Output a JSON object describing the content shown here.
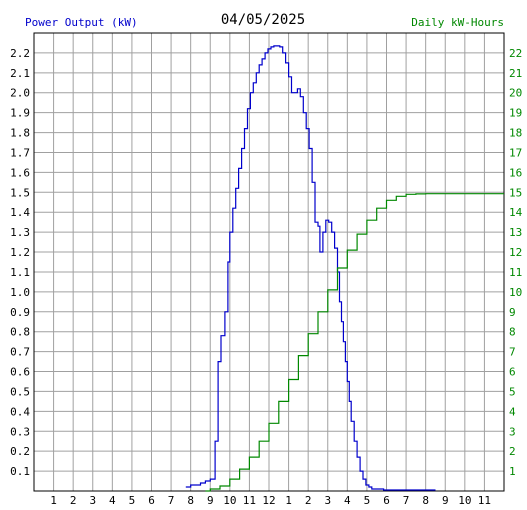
{
  "chart_data": {
    "type": "line",
    "title": "04/05/2025",
    "left_axis_label": "Power Output (kW)",
    "right_axis_label": "Daily kW-Hours",
    "colors": {
      "power": "#0000cc",
      "energy": "#008800",
      "grid": "#a0a0a0",
      "text": "#000000"
    },
    "grid": true,
    "x_tick_labels": [
      "1",
      "2",
      "3",
      "4",
      "5",
      "6",
      "7",
      "8",
      "9",
      "10",
      "11",
      "12",
      "1",
      "2",
      "3",
      "4",
      "5",
      "6",
      "7",
      "8",
      "9",
      "10",
      "11"
    ],
    "y_left_ticks": [
      0.1,
      0.2,
      0.3,
      0.4,
      0.5,
      0.6,
      0.7,
      0.8,
      0.9,
      1.0,
      1.1,
      1.2,
      1.3,
      1.4,
      1.5,
      1.6,
      1.7,
      1.8,
      1.9,
      2.0,
      2.1,
      2.2
    ],
    "y_left_tick_labels": [
      "0.1",
      "0.2",
      "0.3",
      "0.4",
      "0.5",
      "0.6",
      "0.7",
      "0.8",
      "0.9",
      "1.0",
      "1.1",
      "1.2",
      "1.3",
      "1.4",
      "1.5",
      "1.6",
      "1.7",
      "1.8",
      "1.9",
      "2.0",
      "2.1",
      "2.2"
    ],
    "y_right_ticks": [
      1,
      2,
      3,
      4,
      5,
      6,
      7,
      8,
      9,
      10,
      11,
      12,
      13,
      14,
      15,
      16,
      17,
      18,
      19,
      20,
      21,
      22
    ],
    "y_right_tick_labels": [
      "1",
      "2",
      "3",
      "4",
      "5",
      "6",
      "7",
      "8",
      "9",
      "10",
      "11",
      "12",
      "13",
      "14",
      "15",
      "16",
      "17",
      "18",
      "19",
      "20",
      "21",
      "22"
    ],
    "xlim": [
      0,
      24
    ],
    "ylim_left": [
      0,
      2.3
    ],
    "ylim_right": [
      0,
      23
    ],
    "series": [
      {
        "name": "Power Output (kW)",
        "axis": "left",
        "hours": [
          7.75,
          8.0,
          8.25,
          8.5,
          8.75,
          9.0,
          9.25,
          9.4,
          9.55,
          9.75,
          9.9,
          10.0,
          10.15,
          10.3,
          10.45,
          10.6,
          10.75,
          10.9,
          11.05,
          11.2,
          11.35,
          11.5,
          11.65,
          11.8,
          11.95,
          12.1,
          12.25,
          12.4,
          12.55,
          12.7,
          12.85,
          13.0,
          13.15,
          13.3,
          13.45,
          13.6,
          13.75,
          13.9,
          14.05,
          14.2,
          14.35,
          14.5,
          14.6,
          14.75,
          14.9,
          15.05,
          15.2,
          15.35,
          15.5,
          15.6,
          15.7,
          15.8,
          15.9,
          16.0,
          16.1,
          16.2,
          16.35,
          16.5,
          16.65,
          16.8,
          16.95,
          17.1,
          17.25,
          17.4,
          17.55,
          17.7,
          17.85,
          18.0,
          18.15,
          18.3,
          18.45,
          18.6,
          18.75,
          18.9,
          19.05,
          19.2,
          19.35,
          19.5,
          19.65,
          19.8,
          20.0,
          20.5
        ],
        "values": [
          0.02,
          0.03,
          0.03,
          0.04,
          0.05,
          0.06,
          0.25,
          0.65,
          0.78,
          0.9,
          1.15,
          1.3,
          1.42,
          1.52,
          1.62,
          1.72,
          1.82,
          1.92,
          2.0,
          2.05,
          2.1,
          2.14,
          2.17,
          2.2,
          2.22,
          2.23,
          2.235,
          2.235,
          2.23,
          2.2,
          2.15,
          2.08,
          2.0,
          2.0,
          2.02,
          1.98,
          1.9,
          1.82,
          1.72,
          1.55,
          1.35,
          1.33,
          1.2,
          1.3,
          1.36,
          1.35,
          1.3,
          1.22,
          1.1,
          0.95,
          0.85,
          0.75,
          0.65,
          0.55,
          0.45,
          0.35,
          0.25,
          0.17,
          0.1,
          0.06,
          0.03,
          0.02,
          0.01,
          0.01,
          0.01,
          0.01,
          0.005,
          0.005,
          0.005,
          0.005,
          0.005,
          0.005,
          0.005,
          0.005,
          0.005,
          0.005,
          0.005,
          0.005,
          0.005,
          0.005,
          0.005,
          0.005
        ]
      },
      {
        "name": "Daily kW-Hours",
        "axis": "right",
        "hours": [
          8.75,
          9.0,
          9.5,
          10.0,
          10.5,
          11.0,
          11.5,
          12.0,
          12.5,
          13.0,
          13.5,
          14.0,
          14.5,
          15.0,
          15.5,
          16.0,
          16.5,
          17.0,
          17.5,
          18.0,
          18.5,
          19.0,
          19.5,
          20.0,
          21.0,
          24.0
        ],
        "values": [
          0.0,
          0.1,
          0.25,
          0.6,
          1.1,
          1.7,
          2.5,
          3.4,
          4.5,
          5.6,
          6.8,
          7.9,
          9.0,
          10.1,
          11.2,
          12.1,
          12.9,
          13.6,
          14.2,
          14.6,
          14.8,
          14.9,
          14.92,
          14.93,
          14.93,
          14.93
        ]
      }
    ]
  }
}
